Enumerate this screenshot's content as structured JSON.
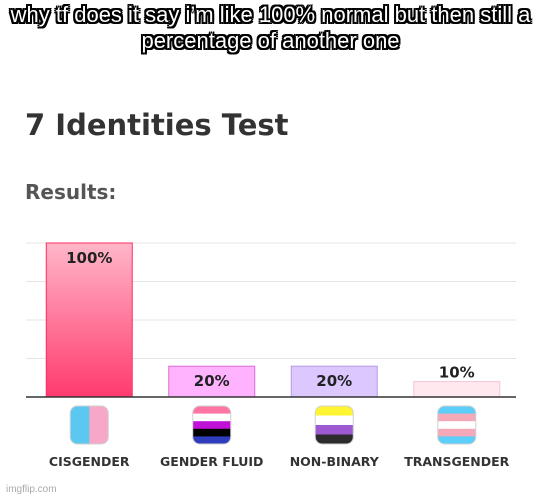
{
  "caption": "why tf does it say i’m like 100% normal but then still a percentage of another one",
  "watermark": "imgflip.com",
  "chart_data": {
    "type": "bar",
    "title": "7 Identities Test",
    "subtitle": "Results:",
    "categories": [
      "CISGENDER",
      "GENDER FLUID",
      "NON-BINARY",
      "TRANSGENDER"
    ],
    "values": [
      100,
      20,
      20,
      10
    ],
    "value_labels": [
      "100%",
      "20%",
      "20%",
      "10%"
    ],
    "ylim": [
      0,
      100
    ],
    "grid": true,
    "bar_colors": [
      {
        "fill_top": "#ffb6c8",
        "fill_bottom": "#ff3a6e",
        "stroke": "#ff2d63"
      },
      {
        "fill_top": "#ffb3ff",
        "fill_bottom": "#ffb3ff",
        "stroke": "#d96bd9"
      },
      {
        "fill_top": "#dcc8ff",
        "fill_bottom": "#dcc8ff",
        "stroke": "#b59be6"
      },
      {
        "fill_top": "#ffe8ee",
        "fill_bottom": "#ffe8ee",
        "stroke": "#f4c6d1"
      }
    ],
    "flags": [
      {
        "icon": "cisgender-flag-icon",
        "stripes": [
          "#5ac8f0",
          "#f7a8c8"
        ],
        "direction": "vertical"
      },
      {
        "icon": "gender-fluid-flag-icon",
        "stripes": [
          "#ff76a4",
          "#ffffff",
          "#c011d7",
          "#000000",
          "#2f3cbe"
        ],
        "direction": "horizontal"
      },
      {
        "icon": "non-binary-flag-icon",
        "stripes": [
          "#fff430",
          "#ffffff",
          "#9c59d1",
          "#2c2c2c"
        ],
        "direction": "horizontal"
      },
      {
        "icon": "transgender-flag-icon",
        "stripes": [
          "#5bcefa",
          "#f5a9b8",
          "#ffffff",
          "#f5a9b8",
          "#5bcefa"
        ],
        "direction": "horizontal"
      }
    ]
  }
}
